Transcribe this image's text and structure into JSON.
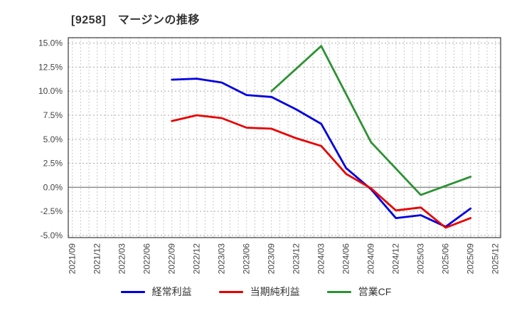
{
  "title": "[9258]　マージンの推移",
  "y_axis": {
    "tick_labels": [
      "15.0%",
      "12.5%",
      "10.0%",
      "7.5%",
      "5.0%",
      "2.5%",
      "0.0%",
      "-2.5%",
      "-5.0%"
    ],
    "min": -5,
    "max": 15,
    "step": 2.5
  },
  "x_axis": {
    "tick_labels": [
      "2021/09",
      "2021/12",
      "2022/03",
      "2022/06",
      "2022/09",
      "2022/12",
      "2023/03",
      "2023/06",
      "2023/09",
      "2023/12",
      "2024/03",
      "2024/06",
      "2024/09",
      "2024/12",
      "2025/03",
      "2025/06",
      "2025/09",
      "2025/12"
    ]
  },
  "colors": {
    "ordinary_profit": "#0000e0",
    "net_income": "#e80000",
    "operating_cf": "#2e9233",
    "grid": "#b8b8b8",
    "zero_line": "#8a8a8a",
    "axis_box": "#3a3a3a",
    "tick_text": "#444444",
    "title_text": "#333333"
  },
  "chart_data": {
    "type": "line",
    "title": "[9258]　マージンの推移",
    "xlabel": "",
    "ylabel": "",
    "ylim": [
      -5,
      15
    ],
    "ytick_step": 2.5,
    "grid": true,
    "legend_position": "bottom",
    "categories": [
      "2021/09",
      "2021/12",
      "2022/03",
      "2022/06",
      "2022/09",
      "2022/12",
      "2023/03",
      "2023/06",
      "2023/09",
      "2023/12",
      "2024/03",
      "2024/06",
      "2024/09",
      "2024/12",
      "2025/03",
      "2025/06",
      "2025/09",
      "2025/12"
    ],
    "series": [
      {
        "name": "経常利益",
        "color": "#0000e0",
        "values": [
          null,
          null,
          null,
          null,
          11.2,
          11.3,
          10.9,
          9.6,
          9.4,
          8.1,
          6.6,
          2.0,
          -0.2,
          -3.2,
          -2.9,
          -4.1,
          -2.2,
          null
        ]
      },
      {
        "name": "当期純利益",
        "color": "#e80000",
        "values": [
          null,
          null,
          null,
          null,
          6.9,
          7.5,
          7.2,
          6.2,
          6.1,
          5.1,
          4.3,
          1.4,
          -0.1,
          -2.4,
          -2.1,
          -4.2,
          -3.2,
          null
        ]
      },
      {
        "name": "営業CF",
        "color": "#2e9233",
        "values": [
          null,
          null,
          null,
          null,
          null,
          null,
          null,
          null,
          10.0,
          null,
          14.7,
          null,
          4.7,
          null,
          -0.8,
          null,
          1.1,
          null
        ]
      }
    ]
  }
}
